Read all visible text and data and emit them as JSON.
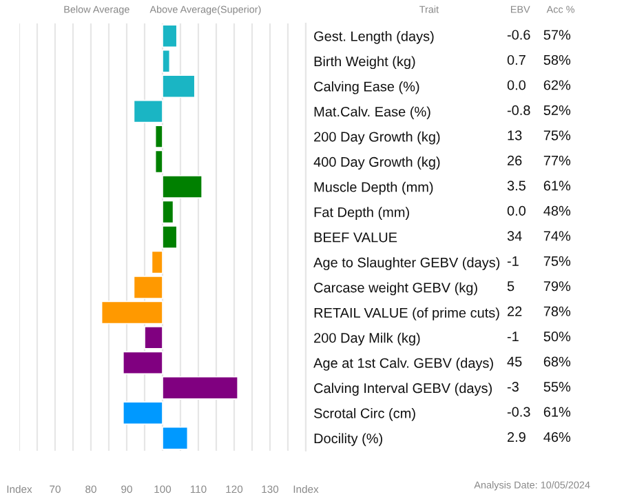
{
  "chart_data": [
    {
      "type": "bar",
      "orientation": "horizontal",
      "categories": [
        "Gest. Length (days)",
        "Birth Weight (kg)",
        "Calving Ease (%)",
        "Mat.Calv. Ease (%)",
        "200 Day Growth (kg)",
        "400 Day Growth (kg)",
        "Muscle Depth (mm)",
        "Fat Depth (mm)",
        "BEEF VALUE",
        "Age to Slaughter GEBV (days)",
        "Carcase weight GEBV (kg)",
        "RETAIL VALUE (of prime cuts)",
        "200 Day Milk (kg)",
        "Age at 1st Calv. GEBV (days)",
        "Calving Interval GEBV (days)",
        "Scrotal Circ (cm)",
        "Docility (%)"
      ],
      "values": [
        4,
        2,
        9,
        -8,
        -2,
        -2,
        11,
        3,
        4,
        -3,
        -8,
        -17,
        -5,
        -11,
        21,
        -11,
        7
      ],
      "base": [
        100,
        100,
        100,
        100,
        100,
        100,
        100,
        100,
        100,
        100,
        100,
        100,
        100,
        100,
        100,
        100,
        100
      ],
      "colors": [
        "#1ab5c4",
        "#1ab5c4",
        "#1ab5c4",
        "#1ab5c4",
        "#008000",
        "#008000",
        "#008000",
        "#008000",
        "#008000",
        "#ff9900",
        "#ff9900",
        "#ff9900",
        "#800080",
        "#800080",
        "#800080",
        "#0099ff",
        "#0099ff"
      ],
      "xlim": [
        60,
        140
      ],
      "xticks": [
        {
          "value": 60,
          "label": "Index"
        },
        {
          "value": 65,
          "label": null
        },
        70,
        {
          "value": 75,
          "label": null
        },
        80,
        {
          "value": 85,
          "label": null
        },
        90,
        {
          "value": 95,
          "label": null
        },
        100,
        {
          "value": 105,
          "label": null
        },
        110,
        {
          "value": 115,
          "label": null
        },
        120,
        {
          "value": 125,
          "label": null
        },
        130,
        {
          "value": 135,
          "label": null
        },
        {
          "value": 140,
          "label": "Index"
        }
      ],
      "grid": "x",
      "annotations": [
        "Below Average",
        "Above Average(Superior)",
        "Trait",
        "Analysis Date: 10/05/2024"
      ]
    },
    {
      "type": "other",
      "annotations": [
        "EBV",
        "Acc %",
        "-0.6",
        "57%",
        "0.7",
        "58%",
        "0.0",
        "62%",
        "-0.8",
        "52%",
        "13",
        "75%",
        "26",
        "77%",
        "3.5",
        "61%",
        "0.0",
        "48%",
        "34",
        "74%",
        "-1",
        "75%",
        "5",
        "79%",
        "22",
        "78%",
        "-1",
        "50%",
        "45",
        "68%",
        "-3",
        "55%",
        "-0.3",
        "61%",
        "2.9",
        "46%"
      ]
    }
  ]
}
